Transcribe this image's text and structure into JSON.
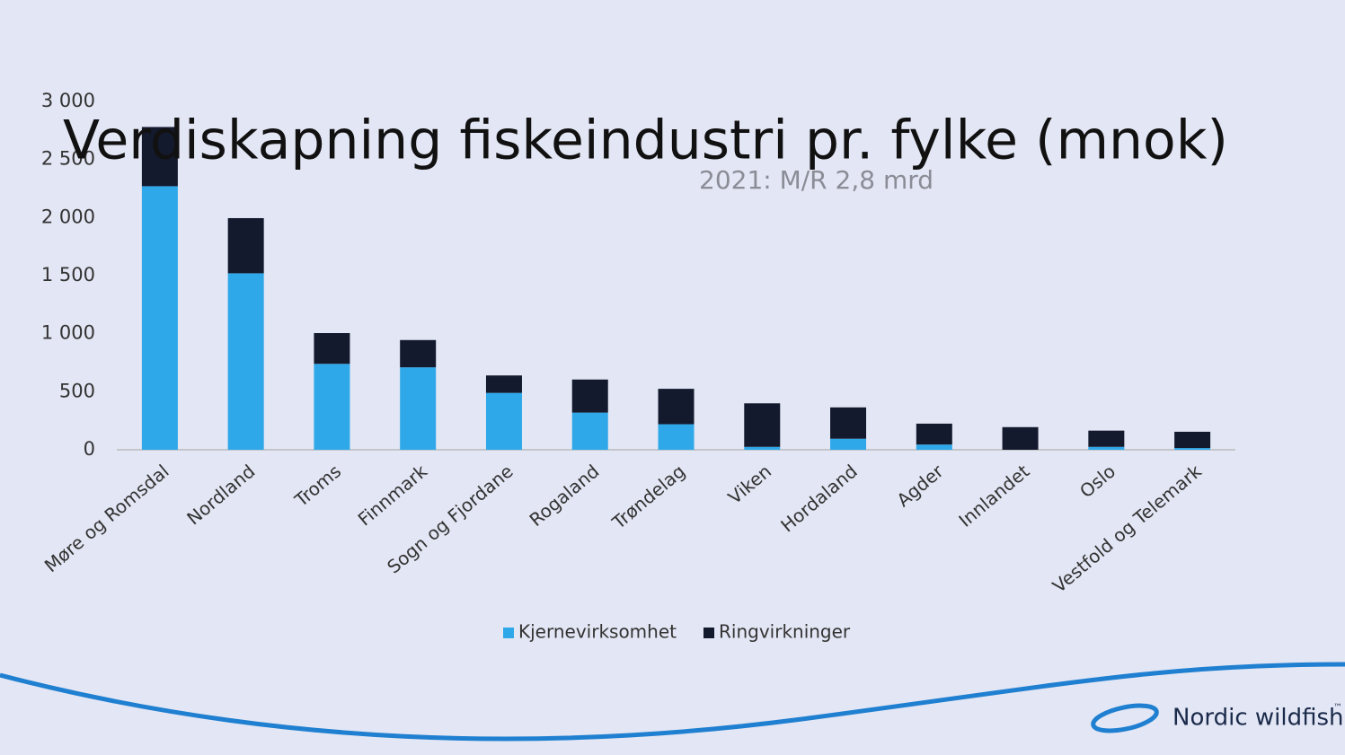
{
  "chart_data": {
    "type": "stacked_bar",
    "title": "Verdiskapning fiskeindustri pr. fylke (mnok)",
    "subtitle": "2021: M/R 2,8 mrd",
    "categories": [
      "Møre og Romsdal",
      "Nordland",
      "Troms",
      "Finnmark",
      "Sogn og Fjordane",
      "Rogaland",
      "Trøndelag",
      "Viken",
      "Hordaland",
      "Agder",
      "Innlandet",
      "Oslo",
      "Vestfold og Telemark"
    ],
    "series": [
      {
        "name": "Kjernevirksomhet",
        "color": "#2ea8e8",
        "values": [
          2270,
          1520,
          740,
          710,
          490,
          320,
          220,
          25,
          95,
          45,
          0,
          25,
          15
        ]
      },
      {
        "name": "Ringvirkninger",
        "color": "#141a2e",
        "values": [
          510,
          475,
          265,
          235,
          150,
          285,
          305,
          375,
          270,
          180,
          195,
          140,
          140
        ]
      }
    ],
    "ylim": [
      0,
      3000
    ],
    "yticks": [
      0,
      500,
      {
        "value": 1000,
        "label": "1 000"
      },
      {
        "value": 1500,
        "label": "1 500"
      },
      {
        "value": 2000,
        "label": "2 000"
      },
      {
        "value": 2500,
        "label": "2 500"
      },
      {
        "value": 3000,
        "label": "3 000"
      }
    ],
    "grid": false,
    "legend": "bottom"
  },
  "logo": {
    "name": "Nordic wildfish",
    "mark": "™"
  }
}
